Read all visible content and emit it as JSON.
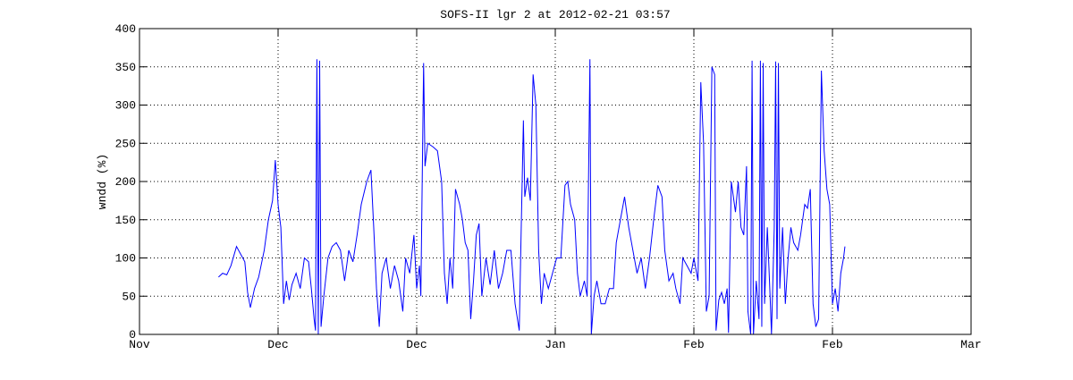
{
  "chart_data": {
    "type": "line",
    "title": "SOFS-II lgr 2 at 2012-02-21 03:57",
    "ylabel": "wndd (%)",
    "x": [
      0.57,
      0.6,
      0.63,
      0.66,
      0.7,
      0.73,
      0.76,
      0.78,
      0.8,
      0.83,
      0.86,
      0.9,
      0.93,
      0.96,
      0.98,
      1.0,
      1.02,
      1.04,
      1.06,
      1.08,
      1.1,
      1.13,
      1.16,
      1.19,
      1.22,
      1.24,
      1.26,
      1.27,
      1.28,
      1.29,
      1.3,
      1.31,
      1.33,
      1.36,
      1.39,
      1.42,
      1.45,
      1.48,
      1.51,
      1.54,
      1.57,
      1.6,
      1.64,
      1.67,
      1.69,
      1.71,
      1.73,
      1.75,
      1.78,
      1.81,
      1.84,
      1.87,
      1.9,
      1.92,
      1.95,
      1.98,
      2.0,
      2.02,
      2.03,
      2.05,
      2.06,
      2.08,
      2.12,
      2.15,
      2.18,
      2.2,
      2.22,
      2.24,
      2.26,
      2.28,
      2.31,
      2.33,
      2.35,
      2.37,
      2.39,
      2.41,
      2.43,
      2.45,
      2.47,
      2.5,
      2.53,
      2.56,
      2.59,
      2.62,
      2.65,
      2.68,
      2.71,
      2.74,
      2.75,
      2.77,
      2.78,
      2.8,
      2.82,
      2.84,
      2.86,
      2.88,
      2.9,
      2.92,
      2.95,
      2.98,
      3.01,
      3.04,
      3.07,
      3.09,
      3.11,
      3.14,
      3.16,
      3.18,
      3.21,
      3.23,
      3.25,
      3.26,
      3.28,
      3.3,
      3.33,
      3.36,
      3.39,
      3.42,
      3.44,
      3.47,
      3.5,
      3.53,
      3.56,
      3.59,
      3.62,
      3.65,
      3.68,
      3.71,
      3.74,
      3.77,
      3.79,
      3.82,
      3.85,
      3.87,
      3.9,
      3.92,
      3.95,
      3.98,
      4.0,
      4.03,
      4.05,
      4.07,
      4.09,
      4.11,
      4.13,
      4.15,
      4.16,
      4.18,
      4.2,
      4.22,
      4.24,
      4.25,
      4.27,
      4.3,
      4.32,
      4.34,
      4.36,
      4.38,
      4.39,
      4.41,
      4.42,
      4.43,
      4.45,
      4.47,
      4.48,
      4.49,
      4.5,
      4.51,
      4.53,
      4.55,
      4.56,
      4.58,
      4.59,
      4.6,
      4.61,
      4.62,
      4.64,
      4.66,
      4.68,
      4.7,
      4.72,
      4.75,
      4.77,
      4.8,
      4.82,
      4.84,
      4.86,
      4.88,
      4.9,
      4.92,
      4.94,
      4.96,
      4.98,
      5.0,
      5.02,
      5.04,
      5.06,
      5.08,
      5.09
    ],
    "series": [
      {
        "color": "#0000ff",
        "values": [
          75,
          80,
          78,
          90,
          115,
          105,
          95,
          55,
          35,
          60,
          75,
          110,
          150,
          175,
          228,
          170,
          140,
          40,
          70,
          45,
          65,
          80,
          60,
          100,
          95,
          60,
          20,
          5,
          360,
          0,
          358,
          10,
          50,
          100,
          115,
          120,
          110,
          70,
          110,
          95,
          130,
          170,
          200,
          215,
          140,
          60,
          10,
          80,
          100,
          60,
          90,
          70,
          30,
          100,
          80,
          130,
          60,
          90,
          50,
          355,
          220,
          250,
          245,
          240,
          200,
          80,
          40,
          100,
          60,
          190,
          170,
          150,
          120,
          110,
          20,
          70,
          130,
          145,
          50,
          100,
          65,
          110,
          60,
          80,
          110,
          110,
          40,
          5,
          100,
          280,
          180,
          205,
          175,
          340,
          300,
          110,
          40,
          80,
          60,
          80,
          100,
          100,
          195,
          200,
          170,
          150,
          80,
          50,
          70,
          50,
          360,
          0,
          50,
          70,
          40,
          40,
          60,
          60,
          120,
          150,
          180,
          140,
          110,
          80,
          100,
          60,
          100,
          150,
          195,
          180,
          110,
          70,
          80,
          60,
          40,
          100,
          90,
          80,
          100,
          70,
          330,
          250,
          30,
          50,
          350,
          340,
          5,
          45,
          55,
          40,
          60,
          2,
          200,
          160,
          200,
          140,
          130,
          220,
          30,
          0,
          358,
          0,
          70,
          20,
          358,
          10,
          355,
          40,
          140,
          50,
          0,
          140,
          357,
          20,
          355,
          60,
          140,
          40,
          100,
          140,
          120,
          110,
          130,
          170,
          165,
          190,
          40,
          10,
          20,
          345,
          240,
          190,
          170,
          40,
          60,
          30,
          80,
          100,
          115
        ]
      }
    ],
    "xlim": [
      0,
      6
    ],
    "xticks": [
      {
        "value": 0,
        "label": "Nov"
      },
      {
        "value": 1,
        "label": "Dec"
      },
      {
        "value": 2,
        "label": "Dec"
      },
      {
        "value": 3,
        "label": "Jan"
      },
      {
        "value": 4,
        "label": "Feb"
      },
      {
        "value": 5,
        "label": "Feb"
      },
      {
        "value": 6,
        "label": "Mar"
      }
    ],
    "ylim": [
      0,
      400
    ],
    "yticks": [
      0,
      50,
      100,
      150,
      200,
      250,
      300,
      350,
      400
    ],
    "grid": true
  }
}
